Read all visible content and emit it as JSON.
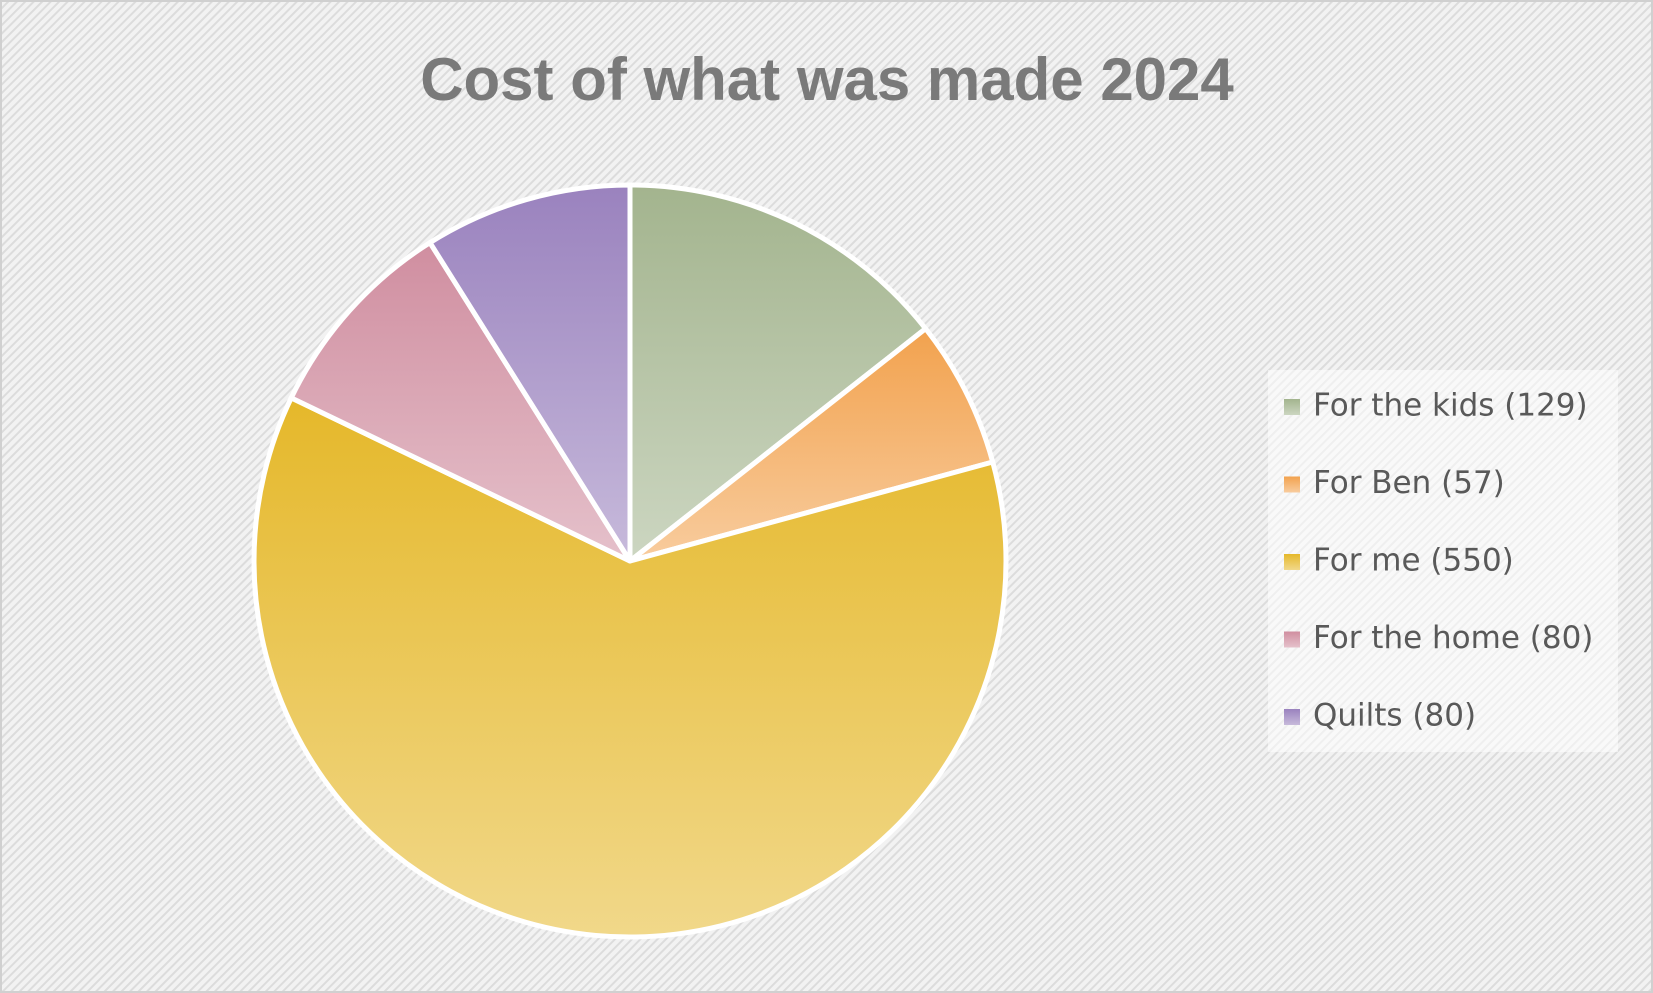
{
  "chart_data": {
    "type": "pie",
    "title": "Cost of what was made 2024",
    "categories": [
      "For the kids (129)",
      "For Ben (57)",
      "For me (550)",
      "For the home (80)",
      "Quilts (80)"
    ],
    "values": [
      129,
      57,
      550,
      80,
      80
    ],
    "colors": [
      "#a3b48e",
      "#f2a24e",
      "#e5b82a",
      "#d08ea0",
      "#9a82be"
    ],
    "legend": "right"
  }
}
